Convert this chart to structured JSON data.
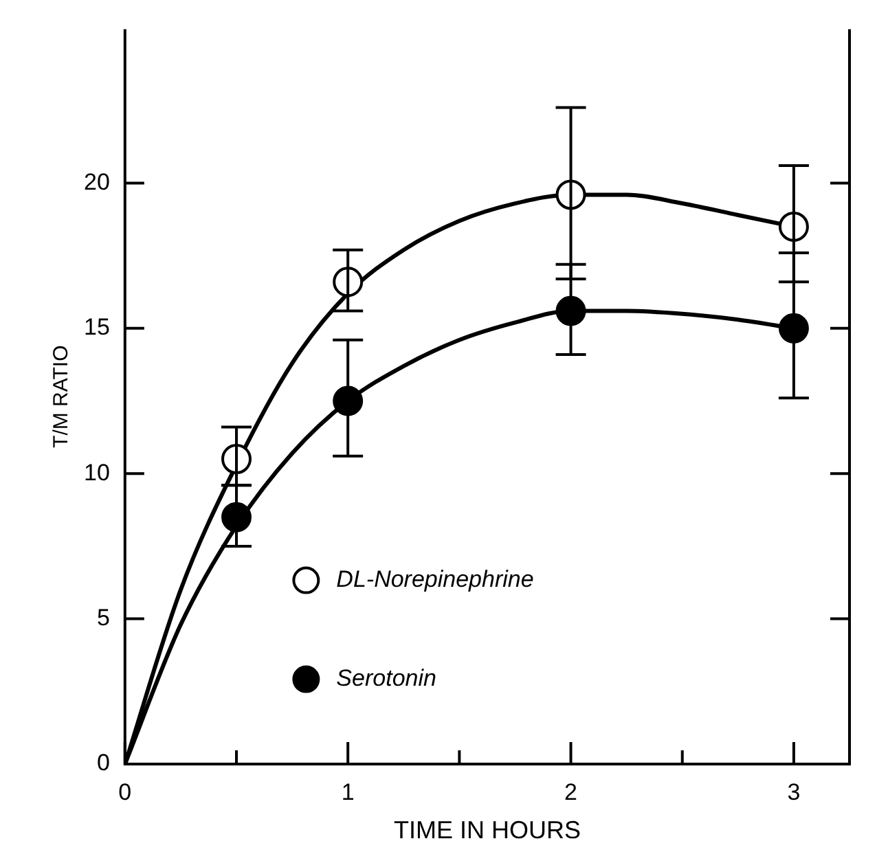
{
  "chart_data": {
    "type": "scatter",
    "xlabel": "TIME IN HOURS",
    "ylabel": "T/M RATIO",
    "xlim": [
      0,
      3.25
    ],
    "ylim": [
      0,
      25.3
    ],
    "xticks": [
      0,
      {
        "value": 0.5,
        "label": null
      },
      1,
      {
        "value": 1.5,
        "label": null
      },
      2,
      {
        "value": 2.5,
        "label": null
      },
      3
    ],
    "yticks": [
      0,
      5,
      10,
      15,
      20
    ],
    "legend": "center",
    "marker": "circle",
    "grid": false,
    "series": [
      {
        "name": "DL-Norepinephrine",
        "color": "#ffffff",
        "x": [
          0.5,
          1,
          2,
          3
        ],
        "values": [
          10.5,
          16.6,
          19.6,
          18.5
        ],
        "errors": [
          [
            9.6,
            11.6
          ],
          [
            15.6,
            17.7
          ],
          [
            16.7,
            22.6
          ],
          [
            16.6,
            20.6
          ]
        ]
      },
      {
        "name": "Serotonin",
        "color": "#000000",
        "x": [
          0.5,
          1,
          2,
          3
        ],
        "values": [
          8.5,
          12.5,
          15.6,
          15.0
        ],
        "errors": [
          [
            7.5,
            9.6
          ],
          [
            10.6,
            14.6
          ],
          [
            14.1,
            17.2
          ],
          [
            12.6,
            17.6
          ]
        ]
      },
      {
        "type": "line",
        "marker": "none",
        "color": "#000000",
        "x": [
          0,
          0.25,
          0.5,
          0.75,
          1,
          1.25,
          1.5,
          1.75,
          2,
          2.25,
          2.5,
          2.75,
          3
        ],
        "values": [
          0,
          6,
          10.3,
          13.8,
          16.2,
          17.7,
          18.7,
          19.3,
          19.6,
          19.6,
          19.3,
          18.9,
          18.5
        ]
      },
      {
        "type": "line",
        "marker": "none",
        "color": "#000000",
        "x": [
          0,
          0.25,
          0.5,
          0.75,
          1,
          1.25,
          1.5,
          1.75,
          2,
          2.25,
          2.5,
          2.75,
          3
        ],
        "values": [
          0,
          4.8,
          8.2,
          10.7,
          12.5,
          13.7,
          14.6,
          15.2,
          15.6,
          15.6,
          15.5,
          15.3,
          15.0
        ]
      }
    ]
  }
}
